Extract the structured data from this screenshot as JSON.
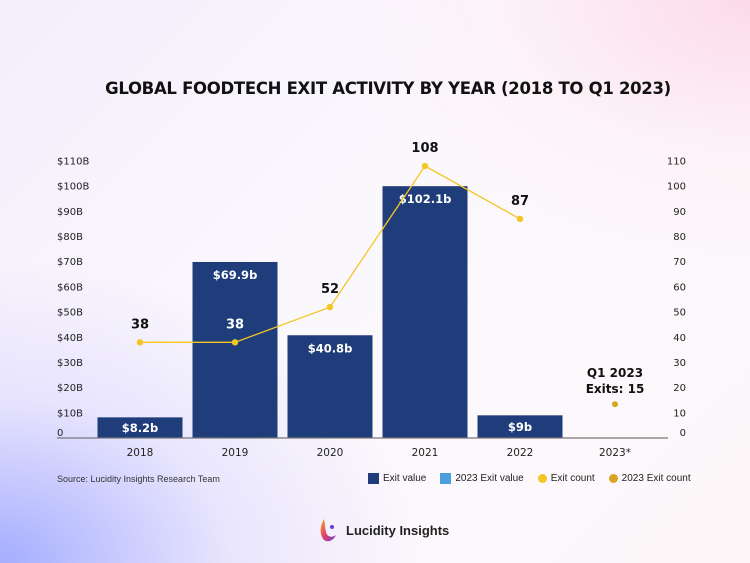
{
  "chart_data": {
    "type": "bar",
    "title": "GLOBAL FOODTECH EXIT ACTIVITY BY YEAR (2018 TO Q1 2023)",
    "categories": [
      "2018",
      "2019",
      "2020",
      "2021",
      "2022",
      "2023*"
    ],
    "y_left": {
      "label": "",
      "ylim": [
        0,
        110
      ],
      "ticks": [
        0,
        10,
        20,
        30,
        40,
        50,
        60,
        70,
        80,
        90,
        100,
        110
      ],
      "tick_labels": [
        "0",
        "$10B",
        "$20B",
        "$30B",
        "$40B",
        "$50B",
        "$60B",
        "$70B",
        "$80B",
        "$90B",
        "$100B",
        "$110B"
      ]
    },
    "y_right": {
      "label": "",
      "ylim": [
        0,
        110
      ],
      "ticks": [
        0,
        10,
        20,
        30,
        40,
        50,
        60,
        70,
        80,
        90,
        100,
        110
      ],
      "tick_labels": [
        "0",
        "10",
        "20",
        "30",
        "40",
        "50",
        "60",
        "70",
        "80",
        "90",
        "100",
        "110"
      ]
    },
    "series": [
      {
        "name": "Exit value",
        "type": "bar",
        "axis": "left",
        "color": "#1f3d7a",
        "values": [
          8.2,
          69.9,
          40.8,
          102.1,
          9,
          null
        ],
        "labels": [
          "$8.2b",
          "$69.9b",
          "$40.8b",
          "$102.1b",
          "$9b",
          ""
        ]
      },
      {
        "name": "2023 Exit value",
        "type": "bar",
        "axis": "left",
        "color": "#4a9fdc",
        "values": [
          null,
          null,
          null,
          null,
          null,
          null
        ]
      },
      {
        "name": "Exit count",
        "type": "line",
        "axis": "right",
        "color": "#f3c623",
        "values": [
          38,
          38,
          52,
          108,
          87,
          null
        ],
        "labels": [
          "38",
          "38",
          "52",
          "108",
          "87",
          ""
        ]
      },
      {
        "name": "2023 Exit count",
        "type": "point",
        "axis": "right",
        "color": "#d9a520",
        "values": [
          null,
          null,
          null,
          null,
          null,
          15
        ]
      }
    ],
    "annotations": [
      {
        "category": "2023*",
        "lines": [
          "Q1 2023",
          "Exits: 15"
        ]
      }
    ],
    "legend": {
      "position": "bottom-right",
      "entries": [
        {
          "label": "Exit value",
          "shape": "square",
          "color": "#1f3d7a"
        },
        {
          "label": "2023 Exit value",
          "shape": "square",
          "color": "#4a9fdc"
        },
        {
          "label": "Exit count",
          "shape": "circle",
          "color": "#f3c623"
        },
        {
          "label": "2023 Exit count",
          "shape": "circle",
          "color": "#d9a520"
        }
      ]
    },
    "grid": false
  },
  "source": "Source: Lucidity Insights Research Team",
  "brand": {
    "name": "Lucidity Insights",
    "logo": "lucidity-logo-icon"
  }
}
